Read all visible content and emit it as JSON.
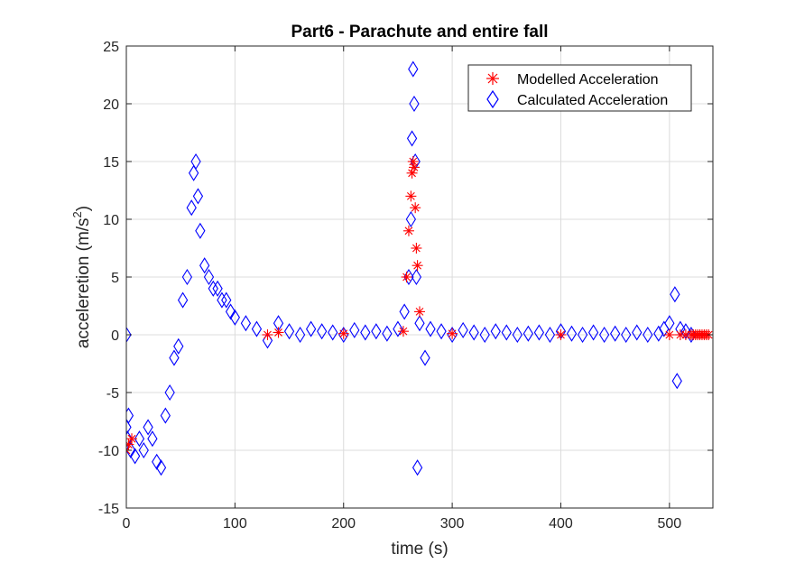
{
  "chart_data": {
    "type": "scatter",
    "title": "Part6 - Parachute and entire fall",
    "xlabel": "time (s)",
    "ylabel": "acceleration (m/s²)",
    "ylabel_main": "acceleretion (m/s",
    "ylabel_sup": "2",
    "ylabel_close": ")",
    "xlim": [
      0,
      540
    ],
    "ylim": [
      -15,
      25
    ],
    "xticks": [
      0,
      100,
      200,
      300,
      400,
      500
    ],
    "yticks": [
      -15,
      -10,
      -5,
      0,
      5,
      10,
      15,
      20,
      25
    ],
    "grid": true,
    "legend_position": "top-right",
    "colors": {
      "modelled": "#ff0000",
      "calculated": "#0000ff"
    },
    "series": [
      {
        "name": "Modelled Acceleration",
        "marker": "asterisk",
        "color": "#ff0000",
        "x": [
          0,
          2,
          5,
          130,
          140,
          200,
          255,
          258,
          260,
          262,
          263,
          264,
          265,
          266,
          267,
          268,
          270,
          300,
          400,
          500,
          510,
          515,
          520,
          522,
          524,
          526,
          528,
          530,
          532,
          534,
          536
        ],
        "y": [
          -10,
          -9.5,
          -9,
          0,
          0.2,
          0.1,
          0.3,
          5,
          9,
          12,
          14,
          15,
          14.5,
          11,
          7.5,
          6,
          2,
          0.1,
          0,
          0,
          0,
          0,
          0,
          0,
          0,
          0,
          0,
          0,
          0,
          0,
          0
        ]
      },
      {
        "name": "Calculated Acceleration",
        "marker": "diamond",
        "color": "#0000ff",
        "x": [
          0,
          0,
          1,
          2,
          4,
          8,
          12,
          16,
          20,
          24,
          28,
          32,
          36,
          40,
          44,
          48,
          52,
          56,
          60,
          62,
          64,
          66,
          68,
          72,
          76,
          80,
          84,
          88,
          92,
          96,
          100,
          110,
          120,
          130,
          140,
          150,
          160,
          170,
          180,
          190,
          200,
          210,
          220,
          230,
          240,
          250,
          256,
          260,
          262,
          263,
          264,
          265,
          266,
          267,
          268,
          270,
          275,
          280,
          290,
          300,
          310,
          320,
          330,
          340,
          350,
          360,
          370,
          380,
          390,
          400,
          410,
          420,
          430,
          440,
          450,
          460,
          470,
          480,
          490,
          495,
          500,
          505,
          507,
          510,
          515,
          520
        ],
        "y": [
          0,
          -8,
          -9,
          -7,
          -10,
          -10.5,
          -9,
          -10,
          -8,
          -9,
          -11,
          -11.5,
          -7,
          -5,
          -2,
          -1,
          3,
          5,
          11,
          14,
          15,
          12,
          9,
          6,
          5,
          4,
          4,
          3,
          3,
          2,
          1.5,
          1,
          0.5,
          -0.5,
          1,
          0.3,
          0,
          0.5,
          0.3,
          0.2,
          0,
          0.4,
          0.2,
          0.3,
          0.1,
          0.5,
          2,
          5,
          10,
          17,
          23,
          20,
          15,
          5,
          -11.5,
          1,
          -2,
          0.5,
          0.3,
          0,
          0.4,
          0.2,
          0,
          0.3,
          0.2,
          0,
          0.1,
          0.2,
          0,
          0.3,
          0.1,
          0,
          0.2,
          0,
          0.1,
          0,
          0.2,
          0,
          0.1,
          0.5,
          1,
          3.5,
          -4,
          0.5,
          0.3,
          0
        ]
      }
    ]
  }
}
